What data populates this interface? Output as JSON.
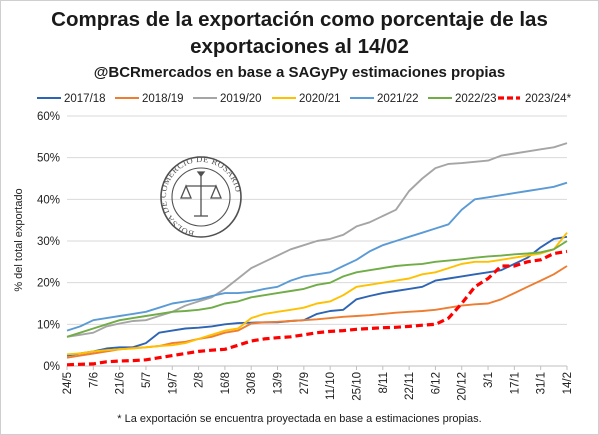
{
  "title_line1": "Compras de la exportación como porcentaje de las",
  "title_line2": "exportaciones al 14/02",
  "subtitle": "@BCRmercados en base a SAGyPy estimaciones propias",
  "footnote": "* La exportación se encuentra proyectada en base a estimaciones propias.",
  "seal": {
    "text": "BOLSA DE COMERCIO DE ROSARIO"
  },
  "chart_data": {
    "type": "line",
    "title": "Compras de la exportación como porcentaje de las exportaciones al 14/02",
    "subtitle": "@BCRmercados en base a SAGyPy estimaciones propias",
    "ylabel": "% del total exportado",
    "xlabel": "",
    "ylim": [
      0,
      60
    ],
    "yticks": [
      0,
      10,
      20,
      30,
      40,
      50,
      60
    ],
    "ytick_labels": [
      "0%",
      "10%",
      "20%",
      "30%",
      "40%",
      "50%",
      "60%"
    ],
    "xtick_labels": [
      "24/5",
      "7/6",
      "21/6",
      "5/7",
      "19/7",
      "2/8",
      "16/8",
      "30/8",
      "13/9",
      "27/9",
      "11/10",
      "25/10",
      "8/11",
      "22/11",
      "6/12",
      "20/12",
      "3/1",
      "17/1",
      "31/1",
      "14/2"
    ],
    "grid": "horizontal",
    "legend_position": "top",
    "x": [
      "24/5",
      "31/5",
      "7/6",
      "14/6",
      "21/6",
      "28/6",
      "5/7",
      "12/7",
      "19/7",
      "26/7",
      "2/8",
      "9/8",
      "16/8",
      "23/8",
      "30/8",
      "6/9",
      "13/9",
      "20/9",
      "27/9",
      "4/10",
      "11/10",
      "18/10",
      "25/10",
      "1/11",
      "8/11",
      "15/11",
      "22/11",
      "29/11",
      "6/12",
      "13/12",
      "20/12",
      "27/12",
      "3/1",
      "10/1",
      "17/1",
      "24/1",
      "31/1",
      "7/2",
      "14/2"
    ],
    "series": [
      {
        "name": "2017/18",
        "color": "#2e64b4",
        "dashed": false,
        "values": [
          2.5,
          3.0,
          3.5,
          4.2,
          4.5,
          4.5,
          5.5,
          8.0,
          8.5,
          9.0,
          9.2,
          9.5,
          10.0,
          10.3,
          10.4,
          10.5,
          10.5,
          10.8,
          11.0,
          12.5,
          13.2,
          13.5,
          16.0,
          16.8,
          17.5,
          18.0,
          18.5,
          19.0,
          20.5,
          21.0,
          21.5,
          22.0,
          22.5,
          23.0,
          24.5,
          26.0,
          28.5,
          30.5,
          31.0
        ]
      },
      {
        "name": "2018/19",
        "color": "#ed7d31",
        "dashed": false,
        "values": [
          2.0,
          2.5,
          3.0,
          3.5,
          4.0,
          4.3,
          4.5,
          4.8,
          5.5,
          5.8,
          6.5,
          7.0,
          8.0,
          8.5,
          10.2,
          10.5,
          10.6,
          10.8,
          11.0,
          11.2,
          11.5,
          11.8,
          12.0,
          12.2,
          12.5,
          12.8,
          13.0,
          13.2,
          13.5,
          14.0,
          14.5,
          14.8,
          15.0,
          16.0,
          17.5,
          19.0,
          20.5,
          22.0,
          24.0
        ]
      },
      {
        "name": "2019/20",
        "color": "#a5a5a5",
        "dashed": false,
        "values": [
          7.0,
          7.5,
          8.0,
          9.5,
          10.2,
          10.8,
          11.0,
          12.0,
          13.0,
          14.5,
          15.5,
          16.5,
          18.5,
          21.0,
          23.5,
          25.0,
          26.5,
          28.0,
          29.0,
          30.0,
          30.5,
          31.5,
          33.5,
          34.5,
          36.0,
          37.5,
          42.0,
          45.0,
          47.5,
          48.5,
          48.7,
          49.0,
          49.3,
          50.5,
          51.0,
          51.5,
          52.0,
          52.5,
          53.5
        ]
      },
      {
        "name": "2020/21",
        "color": "#ffc000",
        "dashed": false,
        "values": [
          2.8,
          3.0,
          3.5,
          3.8,
          4.0,
          4.2,
          4.5,
          4.8,
          5.0,
          5.5,
          6.5,
          7.5,
          8.5,
          9.0,
          11.5,
          12.5,
          13.0,
          13.5,
          14.0,
          15.0,
          15.5,
          17.0,
          19.0,
          19.5,
          20.0,
          20.5,
          21.0,
          22.0,
          22.5,
          23.5,
          24.5,
          25.0,
          25.0,
          25.5,
          26.0,
          26.5,
          27.0,
          28.0,
          32.0
        ]
      },
      {
        "name": "2021/22",
        "color": "#5b9bd5",
        "dashed": false,
        "values": [
          8.5,
          9.5,
          11.0,
          11.5,
          12.0,
          12.5,
          13.0,
          14.0,
          15.0,
          15.5,
          16.0,
          16.8,
          17.5,
          17.5,
          17.8,
          18.5,
          19.0,
          20.5,
          21.5,
          22.0,
          22.5,
          24.0,
          25.5,
          27.5,
          29.0,
          30.0,
          31.0,
          32.0,
          33.0,
          34.0,
          37.5,
          40.0,
          40.5,
          41.0,
          41.5,
          42.0,
          42.5,
          43.0,
          44.0
        ]
      },
      {
        "name": "2022/23",
        "color": "#70ad47",
        "dashed": false,
        "values": [
          7.0,
          8.0,
          9.0,
          10.0,
          11.0,
          11.5,
          12.0,
          12.5,
          13.0,
          13.2,
          13.5,
          14.0,
          15.0,
          15.5,
          16.5,
          17.0,
          17.5,
          18.0,
          18.5,
          19.5,
          20.0,
          21.5,
          22.5,
          23.0,
          23.5,
          24.0,
          24.3,
          24.5,
          25.0,
          25.3,
          25.6,
          26.0,
          26.3,
          26.5,
          26.8,
          27.0,
          27.3,
          28.0,
          30.0
        ]
      },
      {
        "name": "2023/24*",
        "color": "#ff0000",
        "dashed": true,
        "values": [
          0.3,
          0.4,
          0.5,
          1.0,
          1.2,
          1.3,
          1.5,
          2.0,
          2.5,
          3.0,
          3.5,
          3.8,
          4.0,
          5.0,
          6.0,
          6.5,
          6.8,
          7.0,
          7.5,
          8.0,
          8.3,
          8.5,
          8.8,
          9.0,
          9.2,
          9.3,
          9.5,
          9.8,
          10.0,
          11.5,
          15.0,
          19.0,
          21.0,
          24.0,
          24.0,
          25.0,
          25.5,
          27.0,
          27.5
        ]
      }
    ]
  }
}
